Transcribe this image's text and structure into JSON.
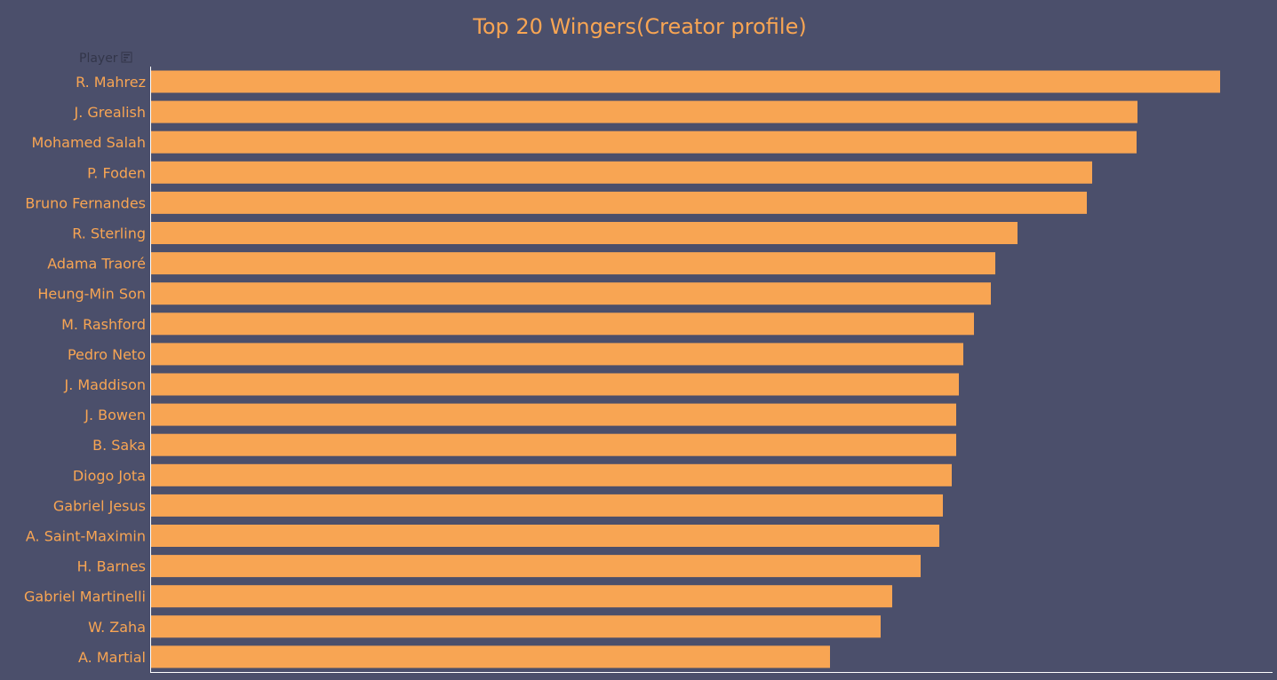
{
  "colors": {
    "background": "#4b4f6b",
    "bar": "#f8a553",
    "text": "#f8a553",
    "axis": "#ffffff",
    "field_label": "#33364a"
  },
  "chart_data": {
    "type": "bar",
    "orientation": "horizontal",
    "title": "Top 20 Wingers(Creator profile)",
    "row_field_label": "Player",
    "row_field_icon": "sort-icon",
    "categories": [
      "R. Mahrez",
      "J. Grealish",
      "Mohamed Salah",
      "P. Foden",
      "Bruno Fernandes",
      "R. Sterling",
      "Adama Traoré",
      "Heung-Min Son",
      "M. Rashford",
      "Pedro Neto",
      "J. Maddison",
      "J. Bowen",
      "B. Saka",
      "Diogo Jota",
      "Gabriel Jesus",
      "A. Saint-Maximin",
      "H. Barnes",
      "Gabriel Martinelli",
      "W. Zaha",
      "A. Martial"
    ],
    "values": [
      1203,
      1110,
      1109,
      1059,
      1053,
      975,
      950,
      945,
      926,
      914,
      909,
      906,
      906,
      901,
      891,
      887,
      866,
      834,
      821,
      764
    ],
    "xlim": [
      0,
      1262
    ],
    "axis_labels_shown": false,
    "grid": false
  }
}
